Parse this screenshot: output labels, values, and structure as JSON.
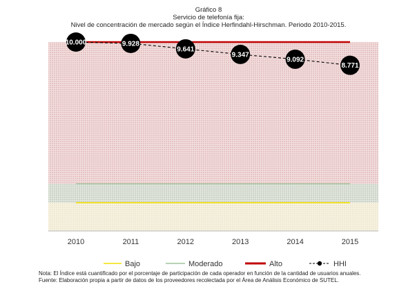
{
  "chart_data": {
    "type": "line",
    "title": "Gráfico 8",
    "subtitle": "Servicio de telefonía fija:",
    "caption": "Nivel de concentración de mercado según el Índice Herfindahl-Hirschman. Periodo 2010-2015.",
    "categories": [
      "2010",
      "2011",
      "2012",
      "2013",
      "2014",
      "2015"
    ],
    "ylim": [
      0,
      10000
    ],
    "bands": [
      {
        "name": "Bajo",
        "from": 0,
        "to": 1500,
        "color": "#f2edd8"
      },
      {
        "name": "Moderado",
        "from": 1500,
        "to": 2500,
        "color": "#cfd8cc"
      },
      {
        "name": "Alto",
        "from": 2500,
        "to": 10000,
        "color": "#e8c8c8"
      }
    ],
    "series": [
      {
        "name": "Bajo",
        "values": [
          1500,
          1500,
          1500,
          1500,
          1500,
          1500
        ],
        "color": "#f2e000",
        "style": "solid"
      },
      {
        "name": "Moderado",
        "values": [
          2500,
          2500,
          2500,
          2500,
          2500,
          2500
        ],
        "color": "#9ec49a",
        "style": "solid"
      },
      {
        "name": "Alto",
        "values": [
          10000,
          10000,
          10000,
          10000,
          10000,
          10000
        ],
        "color": "#c00000",
        "style": "solid"
      },
      {
        "name": "HHI",
        "values": [
          10000,
          9928,
          9641,
          9347,
          9092,
          8771
        ],
        "labels": [
          "10.000",
          "9.928",
          "9.641",
          "9.347",
          "9.092",
          "8.771"
        ],
        "color": "#000000",
        "style": "dashed-markers"
      }
    ],
    "legend_position": "bottom",
    "grid": false
  },
  "notes": {
    "nota": "Nota: El Índice está cuantificado por el porcentaje de participación de cada operador en función de la cantidad de usuarios anuales.",
    "fuente": "Fuente: Elaboración propia a partir de datos de los proveedores recolectada por el Área de Análisis Económico de SUTEL."
  }
}
